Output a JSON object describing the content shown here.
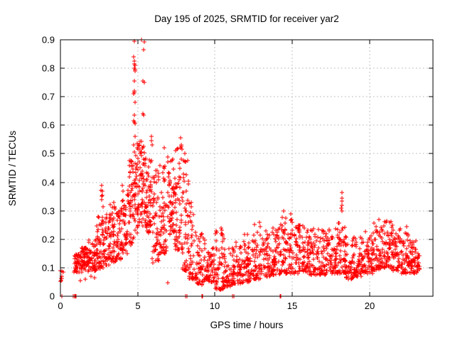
{
  "window": {
    "title": "Day 195 of 2025, SRMTID for receiver yar2"
  },
  "chart_data": {
    "type": "scatter",
    "title": "Day 195 of 2025, SRMTID for receiver yar2",
    "xlabel": "GPS time / hours",
    "ylabel": "SRMTID / TECUs",
    "xlim": [
      0,
      24.1
    ],
    "ylim": [
      0,
      0.9
    ],
    "xticks": [
      0,
      5,
      10,
      15,
      20
    ],
    "xtick_labels": [
      "0",
      "5",
      "10",
      "15",
      "20"
    ],
    "yticks": [
      0,
      0.1,
      0.2,
      0.3,
      0.4,
      0.5,
      0.6,
      0.7,
      0.8,
      0.9
    ],
    "ytick_labels": [
      "0",
      "0.1",
      "0.2",
      "0.3",
      "0.4",
      "0.5",
      "0.6",
      "0.7",
      "0.8",
      "0.9"
    ],
    "grid": true,
    "legend": "none",
    "marker": "plus",
    "marker_size_px": 7,
    "marker_color": "#ff0000",
    "grid_color": "#b0b0b0",
    "border_color": "#000000",
    "background_color": "#ffffff",
    "description": "Dense time series of SRMTID values every ~30 s; quiet band ~0.1 TECU with strong activity spike to 0.9 near 05:00 GPS time, secondary spike ~0.55 near 07:50, and minor enhancement near 18:12.",
    "density_bins": [
      [
        0.0,
        0.18,
        5,
        0.05,
        0.1,
        1.0
      ],
      [
        0.88,
        1.3,
        45,
        0.085,
        0.15,
        1.3
      ],
      [
        1.3,
        1.8,
        55,
        0.085,
        0.17,
        1.4
      ],
      [
        1.8,
        2.3,
        55,
        0.09,
        0.2,
        1.6
      ],
      [
        2.3,
        2.6,
        35,
        0.095,
        0.3,
        1.9
      ],
      [
        2.6,
        2.8,
        25,
        0.1,
        0.385,
        1.9
      ],
      [
        2.8,
        3.2,
        45,
        0.11,
        0.3,
        1.7
      ],
      [
        3.2,
        3.6,
        45,
        0.12,
        0.33,
        1.6
      ],
      [
        3.6,
        4.0,
        45,
        0.13,
        0.31,
        1.5
      ],
      [
        4.0,
        4.4,
        45,
        0.15,
        0.4,
        1.5
      ],
      [
        4.4,
        4.75,
        45,
        0.18,
        0.48,
        1.3
      ],
      [
        4.75,
        5.1,
        55,
        0.22,
        0.56,
        1.1
      ],
      [
        5.1,
        5.5,
        55,
        0.24,
        0.55,
        1.1
      ],
      [
        5.5,
        5.95,
        55,
        0.22,
        0.5,
        1.2
      ],
      [
        5.95,
        6.4,
        55,
        0.11,
        0.45,
        1.3
      ],
      [
        6.4,
        6.9,
        55,
        0.15,
        0.46,
        1.4
      ],
      [
        6.9,
        7.4,
        55,
        0.2,
        0.49,
        1.3
      ],
      [
        7.4,
        7.9,
        55,
        0.16,
        0.52,
        1.2
      ],
      [
        7.9,
        8.3,
        50,
        0.09,
        0.48,
        1.6
      ],
      [
        8.3,
        8.8,
        50,
        0.06,
        0.33,
        1.9
      ],
      [
        8.8,
        9.4,
        55,
        0.04,
        0.22,
        1.8
      ],
      [
        9.4,
        10.0,
        55,
        0.05,
        0.18,
        1.8
      ],
      [
        10.0,
        10.6,
        55,
        0.025,
        0.24,
        2.0
      ],
      [
        10.6,
        11.2,
        55,
        0.035,
        0.18,
        1.9
      ],
      [
        11.2,
        11.8,
        55,
        0.045,
        0.19,
        1.8
      ],
      [
        11.8,
        12.4,
        55,
        0.05,
        0.22,
        1.8
      ],
      [
        12.4,
        13.0,
        55,
        0.06,
        0.26,
        1.8
      ],
      [
        13.0,
        13.6,
        55,
        0.07,
        0.23,
        1.6
      ],
      [
        13.6,
        14.2,
        55,
        0.075,
        0.25,
        1.6
      ],
      [
        14.2,
        14.8,
        55,
        0.08,
        0.295,
        1.6
      ],
      [
        14.8,
        15.4,
        55,
        0.08,
        0.27,
        1.6
      ],
      [
        15.4,
        16.0,
        55,
        0.08,
        0.255,
        1.6
      ],
      [
        16.0,
        16.6,
        55,
        0.075,
        0.245,
        1.6
      ],
      [
        16.6,
        17.2,
        55,
        0.075,
        0.235,
        1.6
      ],
      [
        17.2,
        17.8,
        55,
        0.08,
        0.25,
        1.6
      ],
      [
        17.8,
        18.4,
        55,
        0.08,
        0.29,
        1.6
      ],
      [
        18.4,
        19.0,
        55,
        0.06,
        0.22,
        1.7
      ],
      [
        19.0,
        19.6,
        55,
        0.07,
        0.21,
        1.6
      ],
      [
        19.6,
        20.2,
        55,
        0.08,
        0.23,
        1.6
      ],
      [
        20.2,
        20.8,
        55,
        0.09,
        0.26,
        1.4
      ],
      [
        20.8,
        21.4,
        55,
        0.1,
        0.265,
        1.4
      ],
      [
        21.4,
        22.0,
        55,
        0.09,
        0.25,
        1.5
      ],
      [
        22.0,
        22.6,
        55,
        0.08,
        0.225,
        1.6
      ],
      [
        22.6,
        23.05,
        45,
        0.08,
        0.2,
        1.5
      ],
      [
        23.05,
        23.25,
        18,
        0.09,
        0.16,
        1.3
      ]
    ],
    "outlier_points": [
      [
        0.02,
        0.09
      ],
      [
        0.04,
        0.062
      ],
      [
        0.06,
        0.055
      ],
      [
        1.3,
        0.055
      ],
      [
        1.6,
        0.06
      ],
      [
        2.0,
        0.07
      ],
      [
        2.2,
        0.065
      ],
      [
        2.66,
        0.34
      ],
      [
        2.68,
        0.39
      ],
      [
        2.7,
        0.37
      ],
      [
        2.72,
        0.355
      ],
      [
        3.45,
        0.33
      ],
      [
        3.5,
        0.315
      ],
      [
        4.55,
        0.47
      ],
      [
        4.6,
        0.455
      ],
      [
        4.76,
        0.84
      ],
      [
        4.78,
        0.895
      ],
      [
        4.77,
        0.8
      ],
      [
        4.79,
        0.825
      ],
      [
        4.8,
        0.815
      ],
      [
        4.81,
        0.795
      ],
      [
        4.82,
        0.81
      ],
      [
        4.83,
        0.79
      ],
      [
        4.79,
        0.755
      ],
      [
        4.78,
        0.72
      ],
      [
        4.8,
        0.715
      ],
      [
        4.76,
        0.71
      ],
      [
        4.82,
        0.68
      ],
      [
        4.77,
        0.635
      ],
      [
        4.75,
        0.615
      ],
      [
        4.79,
        0.61
      ],
      [
        4.81,
        0.605
      ],
      [
        4.84,
        0.56
      ],
      [
        5.24,
        0.9
      ],
      [
        5.43,
        0.893
      ],
      [
        5.36,
        0.865
      ],
      [
        5.35,
        0.755
      ],
      [
        5.45,
        0.75
      ],
      [
        5.33,
        0.64
      ],
      [
        5.4,
        0.635
      ],
      [
        5.37,
        0.525
      ],
      [
        5.88,
        0.56
      ],
      [
        5.9,
        0.545
      ],
      [
        5.93,
        0.53
      ],
      [
        6.7,
        0.52
      ],
      [
        6.94,
        0.047
      ],
      [
        7.76,
        0.52
      ],
      [
        7.78,
        0.555
      ],
      [
        7.8,
        0.53
      ],
      [
        7.83,
        0.525
      ],
      [
        7.85,
        0.515
      ],
      [
        8.05,
        0.5
      ],
      [
        8.08,
        0.47
      ],
      [
        10.35,
        0.022
      ],
      [
        10.5,
        0.03
      ],
      [
        12.9,
        0.26
      ],
      [
        14.45,
        0.3
      ],
      [
        14.9,
        0.29
      ],
      [
        15.5,
        0.25
      ],
      [
        16.3,
        0.23
      ],
      [
        18.18,
        0.31
      ],
      [
        18.19,
        0.335
      ],
      [
        18.2,
        0.363
      ],
      [
        18.21,
        0.345
      ],
      [
        18.22,
        0.3
      ],
      [
        18.23,
        0.32
      ],
      [
        20.6,
        0.27
      ],
      [
        21.1,
        0.265
      ],
      [
        21.3,
        0.26
      ],
      [
        22.4,
        0.245
      ]
    ],
    "zero_points": [
      [
        0.08,
        0
      ],
      [
        0.85,
        0
      ],
      [
        0.9,
        0
      ],
      [
        0.93,
        0
      ],
      [
        0.97,
        0
      ],
      [
        1.0,
        0
      ],
      [
        1.03,
        0
      ],
      [
        8.1,
        0
      ],
      [
        8.17,
        0
      ],
      [
        9.13,
        0
      ],
      [
        9.2,
        0
      ],
      [
        11.15,
        0
      ],
      [
        11.22,
        0
      ],
      [
        14.2,
        0
      ],
      [
        14.27,
        0
      ]
    ]
  }
}
